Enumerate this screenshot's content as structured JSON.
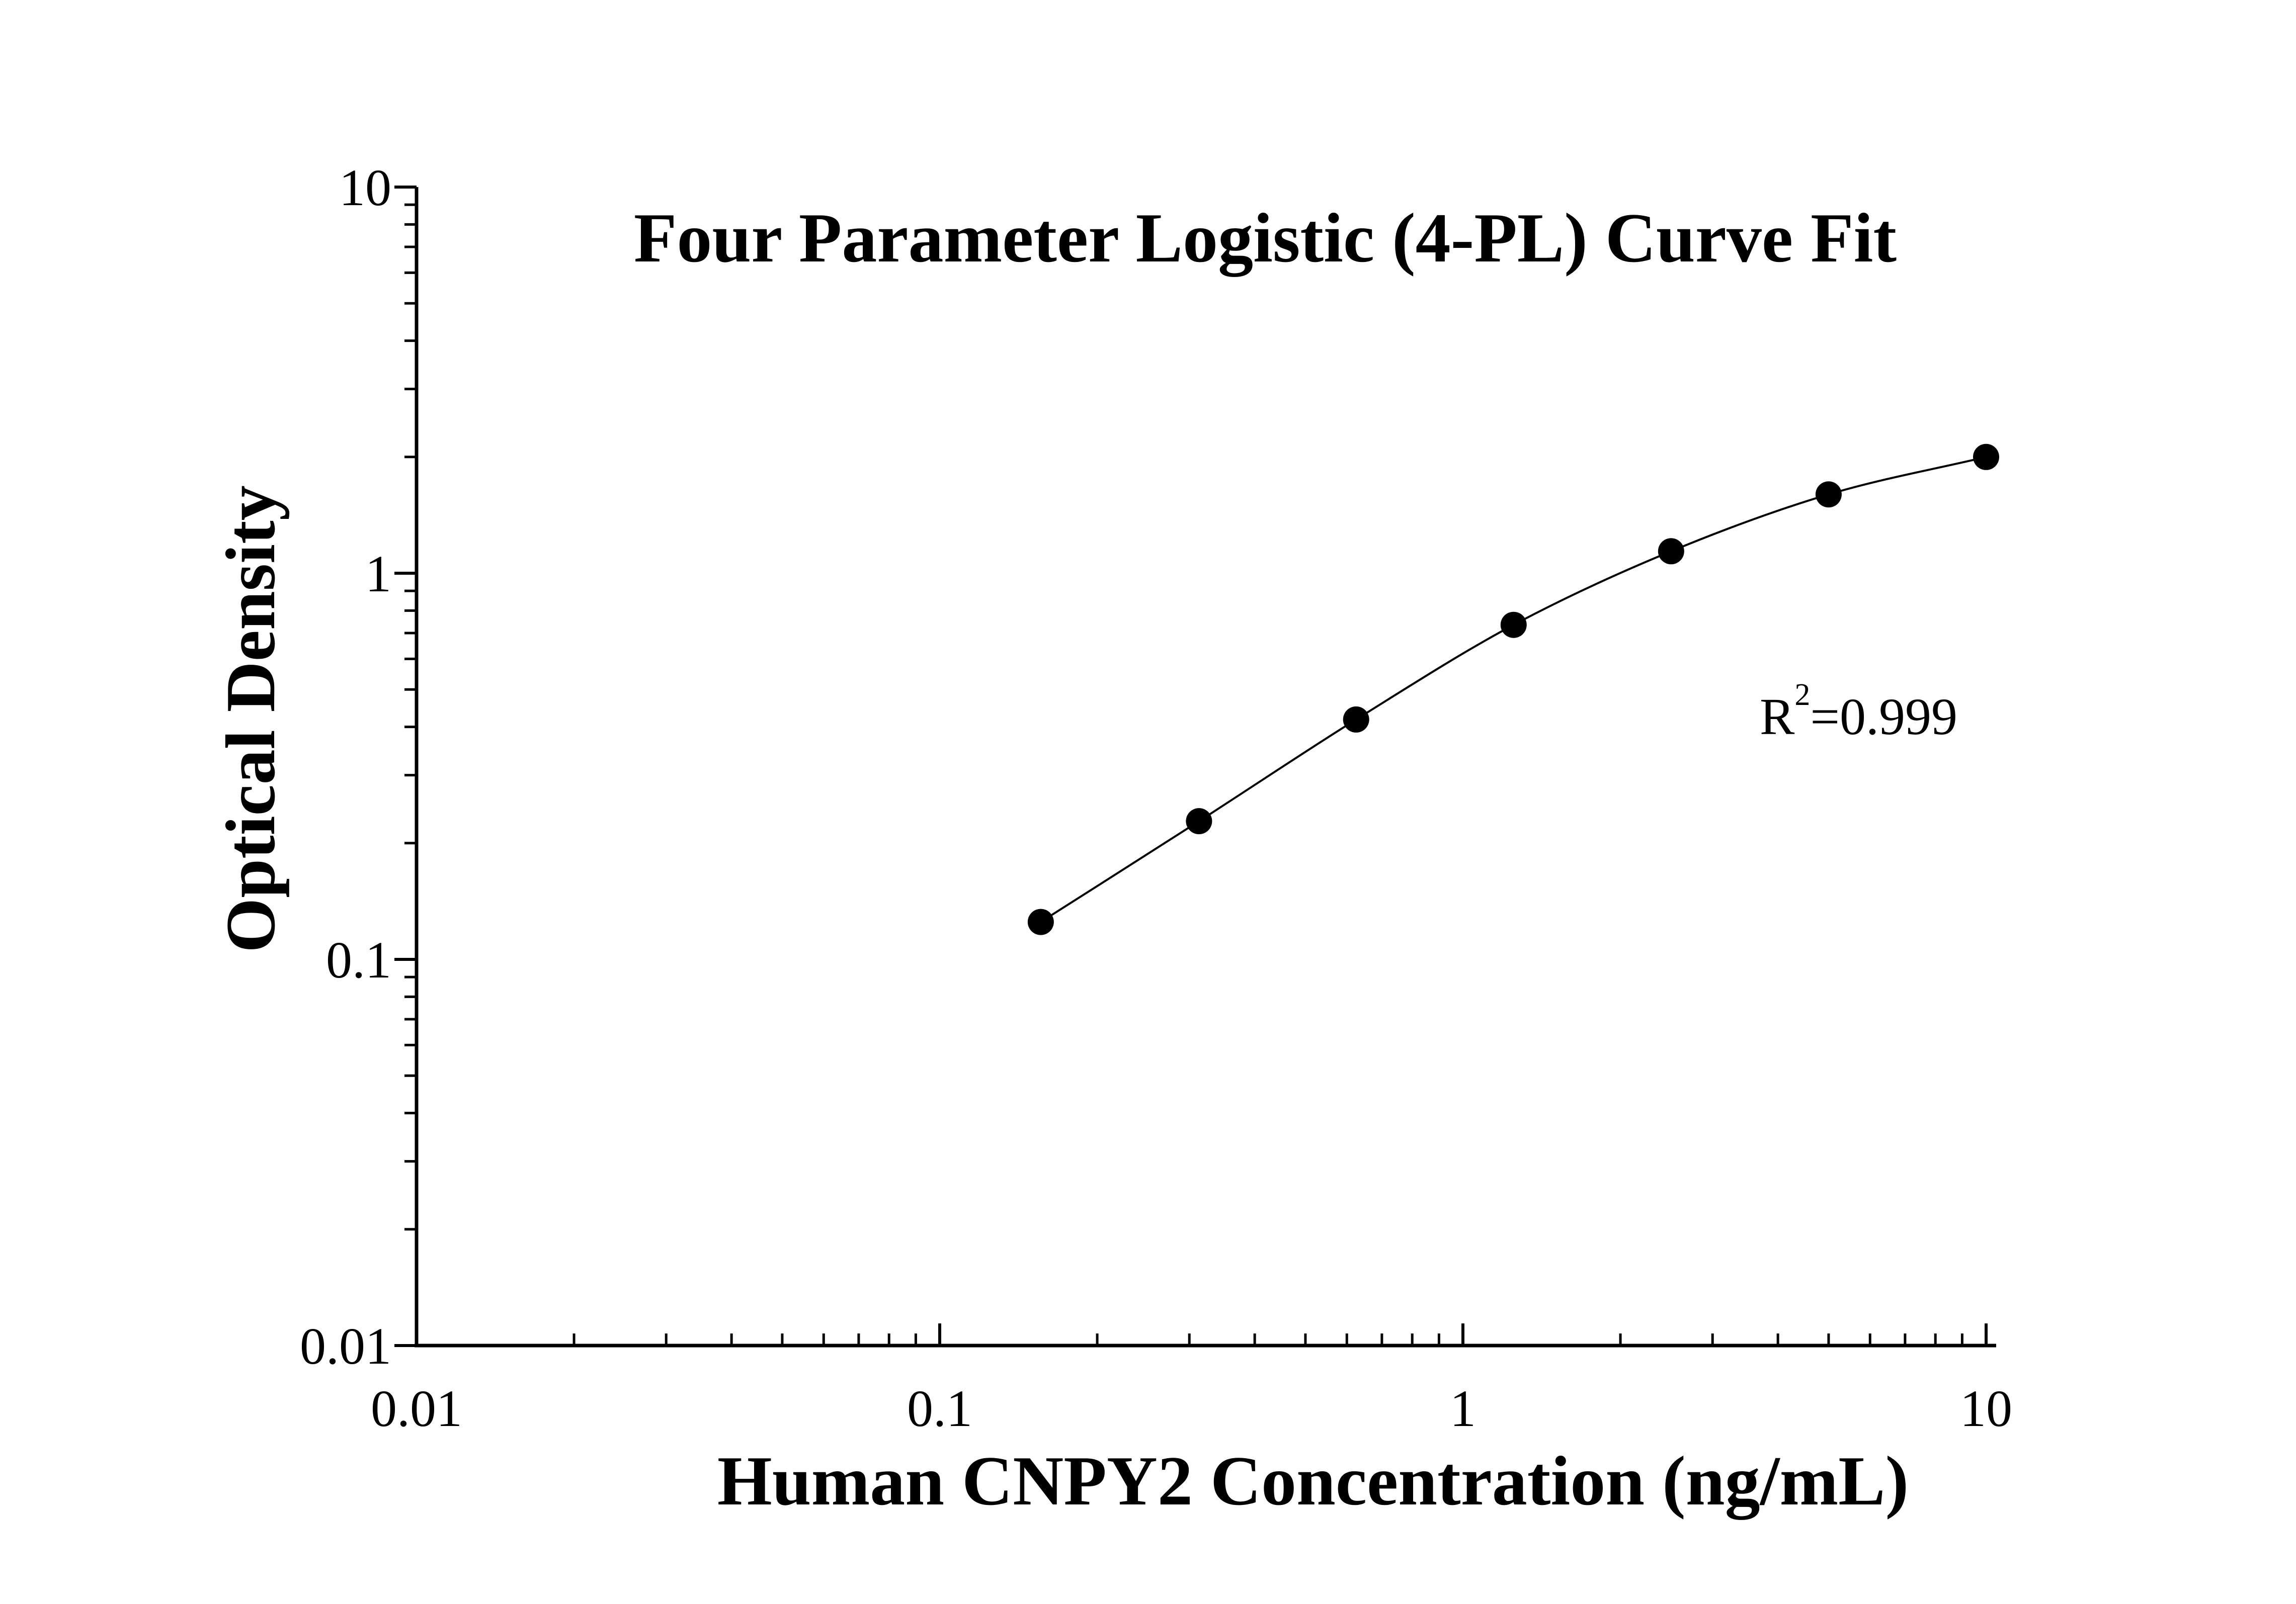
{
  "chart_data": {
    "type": "scatter",
    "title": "Four Parameter Logistic (4-PL) Curve Fit",
    "xlabel": "Human CNPY2 Concentration (ng/mL)",
    "ylabel": "Optical Density",
    "x_scale": "log",
    "y_scale": "log",
    "xlim": [
      0.01,
      10
    ],
    "ylim": [
      0.01,
      10
    ],
    "x_ticks": [
      "0.01",
      "0.1",
      "1",
      "10"
    ],
    "y_ticks": [
      "0.01",
      "0.1",
      "1",
      "10"
    ],
    "grid": false,
    "legend": "none",
    "series": [
      {
        "x": [
          0.156,
          0.313,
          0.625,
          1.25,
          2.5,
          5,
          10
        ],
        "y": [
          0.125,
          0.228,
          0.418,
          0.735,
          1.14,
          1.6,
          2.0
        ]
      }
    ],
    "annotation": {
      "prefix": "R",
      "superscript": "2",
      "suffix": "=0.999"
    },
    "colors": {
      "marker": "#000000",
      "line": "#000000",
      "axis": "#000000",
      "background": "#ffffff"
    }
  }
}
